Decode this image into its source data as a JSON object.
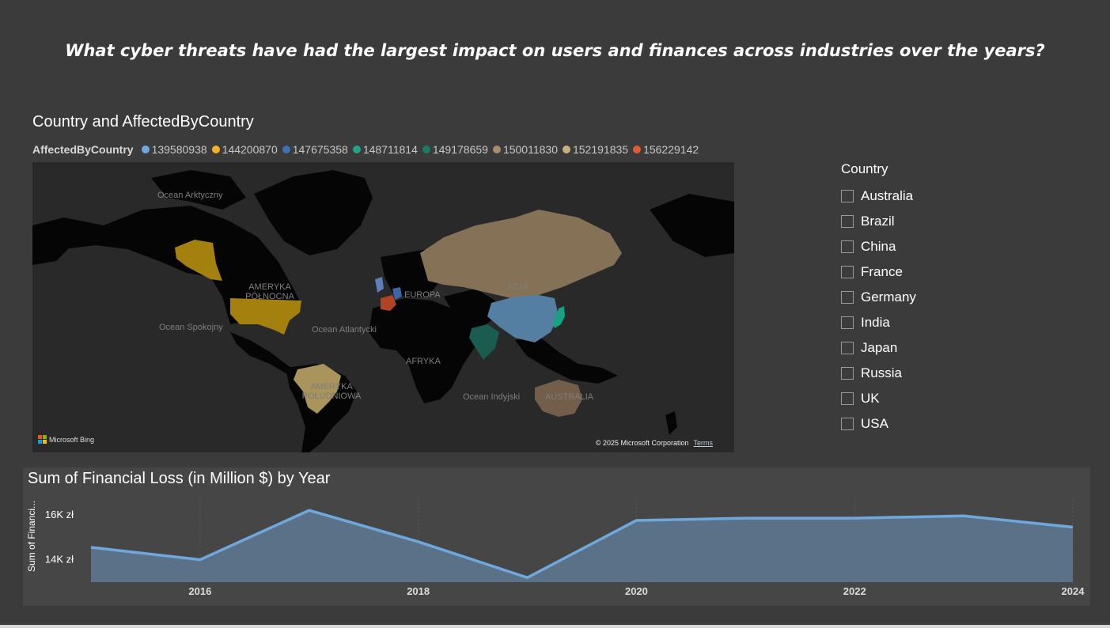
{
  "page": {
    "title": "What cyber threats have had the largest impact on users and finances across industries over the years?"
  },
  "map": {
    "title": "Country and AffectedByCountry",
    "legend_title": "AffectedByCountry",
    "legend": [
      {
        "label": "139580938",
        "color": "#6fa8dc"
      },
      {
        "label": "144200870",
        "color": "#f0b323"
      },
      {
        "label": "147675358",
        "color": "#3f6fb5"
      },
      {
        "label": "148711814",
        "color": "#1fa58a"
      },
      {
        "label": "149178659",
        "color": "#1a7a68"
      },
      {
        "label": "150011830",
        "color": "#a88c6a"
      },
      {
        "label": "152191835",
        "color": "#c9b27c"
      },
      {
        "label": "156229142",
        "color": "#e05a33"
      }
    ],
    "labels": {
      "arctic": "Ocean Arktyczny",
      "north_america": "AMERYKA PÓŁNOCNA",
      "europe": "EUROPA",
      "asia": "AZJA",
      "pacific": "Ocean Spokojny",
      "atlantic": "Ocean Atlantycki",
      "africa": "AFRYKA",
      "south_america": "AMERYKA POŁUDNIOWA",
      "indian": "Ocean Indyjski",
      "australia": "AUSTRALIA"
    },
    "bing": "Microsoft Bing",
    "copyright": "© 2025 Microsoft Corporation",
    "terms": "Terms"
  },
  "slicer": {
    "title": "Country",
    "items": [
      "Australia",
      "Brazil",
      "China",
      "France",
      "Germany",
      "India",
      "Japan",
      "Russia",
      "UK",
      "USA"
    ]
  },
  "chart_data": {
    "type": "area",
    "title": "Sum of Financial Loss (in Million $) by Year",
    "ylabel": "Sum of Financi...",
    "xlabel": "",
    "x": [
      2015,
      2016,
      2017,
      2018,
      2019,
      2020,
      2021,
      2022,
      2023,
      2024
    ],
    "x_ticks": [
      "2016",
      "2018",
      "2020",
      "2022",
      "2024"
    ],
    "y_ticks": [
      {
        "value": 14000,
        "label": "14K zł"
      },
      {
        "value": 16000,
        "label": "16K zł"
      }
    ],
    "series": [
      {
        "values": [
          14550,
          14000,
          16200,
          14800,
          13200,
          15750,
          15850,
          15850,
          15950,
          15450
        ],
        "color": "#6fa8dc"
      }
    ],
    "ylim": [
      13000,
      16700
    ]
  }
}
